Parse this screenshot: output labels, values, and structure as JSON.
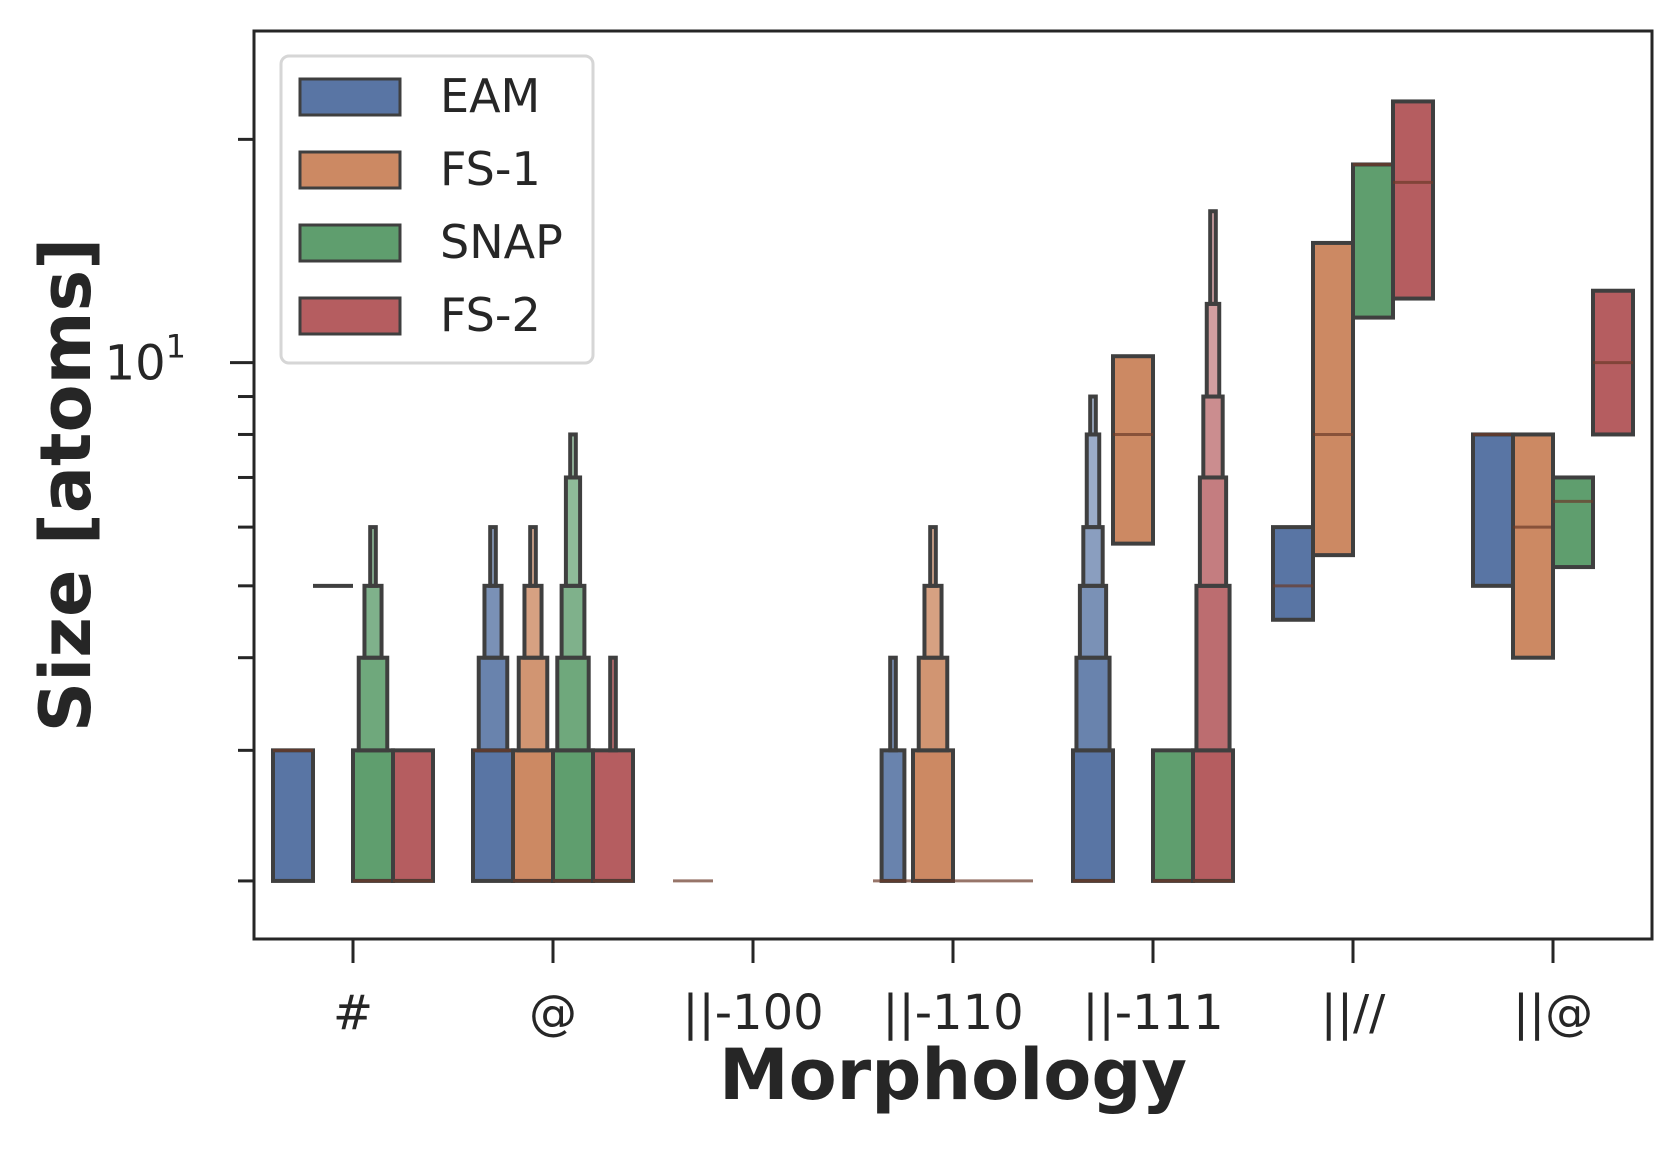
{
  "chart_data": {
    "type": "boxen",
    "xlabel": "Morphology",
    "ylabel": "Size [atoms]",
    "yscale": "log",
    "ylim": [
      1.67,
      28
    ],
    "yticks_major": [
      {
        "value": 10,
        "label_base": "10",
        "label_exp": "1"
      }
    ],
    "yticks_minor": [
      2,
      3,
      4,
      5,
      6,
      7,
      8,
      9,
      20
    ],
    "categories": [
      "#",
      "@",
      "||-100",
      "||-110",
      "||-111",
      "||//",
      "||@"
    ],
    "legend": {
      "position": "top-left",
      "entries": [
        "EAM",
        "FS-1",
        "SNAP",
        "FS-2"
      ]
    },
    "colors": {
      "EAM": "#5975a4",
      "FS-1": "#cc8963",
      "SNAP": "#5f9e6e",
      "FS-2": "#b55d60",
      "edge": "#3f3f3f",
      "axis": "#262626"
    },
    "series": [
      {
        "name": "EAM",
        "boxes": [
          {
            "category": "#",
            "levels": [
              [
                2,
                3
              ]
            ],
            "median": 3
          },
          {
            "category": "@",
            "levels": [
              [
                2,
                3
              ],
              [
                3,
                4
              ],
              [
                4,
                5
              ],
              [
                5,
                6
              ]
            ],
            "median": 3
          },
          {
            "category": "||-100",
            "levels": [
              [
                2,
                2
              ]
            ],
            "median": 2
          },
          {
            "category": "||-110",
            "levels": [
              [
                2,
                2
              ],
              [
                2,
                3
              ],
              [
                3,
                4
              ]
            ],
            "median": 2
          },
          {
            "category": "||-111",
            "levels": [
              [
                2,
                3
              ],
              [
                3,
                4
              ],
              [
                4,
                5
              ],
              [
                5,
                6
              ],
              [
                6,
                8
              ],
              [
                8,
                9
              ]
            ],
            "median": 2
          },
          {
            "category": "||//",
            "levels": [
              [
                4.5,
                6
              ]
            ],
            "median": 5
          },
          {
            "category": "||@",
            "levels": [
              [
                5,
                8
              ]
            ],
            "median": 8
          }
        ]
      },
      {
        "name": "FS-1",
        "boxes": [
          {
            "category": "#",
            "levels": [],
            "median": 5
          },
          {
            "category": "@",
            "levels": [
              [
                2,
                3
              ],
              [
                3,
                4
              ],
              [
                4,
                5
              ],
              [
                5,
                6
              ]
            ],
            "median": 2
          },
          {
            "category": "||-110",
            "levels": [
              [
                2,
                3
              ],
              [
                3,
                4
              ],
              [
                4,
                5
              ],
              [
                5,
                6
              ]
            ],
            "median": 2
          },
          {
            "category": "||-111",
            "levels": [
              [
                5.7,
                10.2
              ]
            ],
            "median": 8
          },
          {
            "category": "||//",
            "levels": [
              [
                5.5,
                14.5
              ]
            ],
            "median": 8
          },
          {
            "category": "||@",
            "levels": [
              [
                4,
                8
              ]
            ],
            "median": 6
          }
        ]
      },
      {
        "name": "SNAP",
        "boxes": [
          {
            "category": "#",
            "levels": [
              [
                2,
                3
              ],
              [
                3,
                4
              ],
              [
                4,
                5
              ],
              [
                5,
                6
              ]
            ],
            "median": 2
          },
          {
            "category": "@",
            "levels": [
              [
                2,
                3
              ],
              [
                3,
                4
              ],
              [
                4,
                5
              ],
              [
                5,
                7
              ],
              [
                7,
                8
              ]
            ],
            "median": 2
          },
          {
            "category": "||-110",
            "levels": [
              [
                2,
                2
              ]
            ],
            "median": 2
          },
          {
            "category": "||-111",
            "levels": [
              [
                2,
                3
              ]
            ],
            "median": 2
          },
          {
            "category": "||//",
            "levels": [
              [
                11.5,
                18.5
              ]
            ],
            "median": 18.5
          },
          {
            "category": "||@",
            "levels": [
              [
                5.3,
                7
              ]
            ],
            "median": 6.5
          }
        ]
      },
      {
        "name": "FS-2",
        "boxes": [
          {
            "category": "#",
            "levels": [
              [
                2,
                3
              ]
            ],
            "median": 2
          },
          {
            "category": "@",
            "levels": [
              [
                2,
                3
              ],
              [
                3,
                4
              ]
            ],
            "median": 2
          },
          {
            "category": "||-110",
            "levels": [
              [
                2,
                2
              ]
            ],
            "median": 2
          },
          {
            "category": "||-111",
            "levels": [
              [
                2,
                3
              ],
              [
                3,
                5
              ],
              [
                5,
                7
              ],
              [
                7,
                9
              ],
              [
                9,
                12
              ],
              [
                12,
                16
              ]
            ],
            "median": 2
          },
          {
            "category": "||//",
            "levels": [
              [
                12.2,
                22.5
              ]
            ],
            "median": 17.5
          },
          {
            "category": "||@",
            "levels": [
              [
                8,
                12.5
              ]
            ],
            "median": 10
          }
        ]
      }
    ]
  }
}
